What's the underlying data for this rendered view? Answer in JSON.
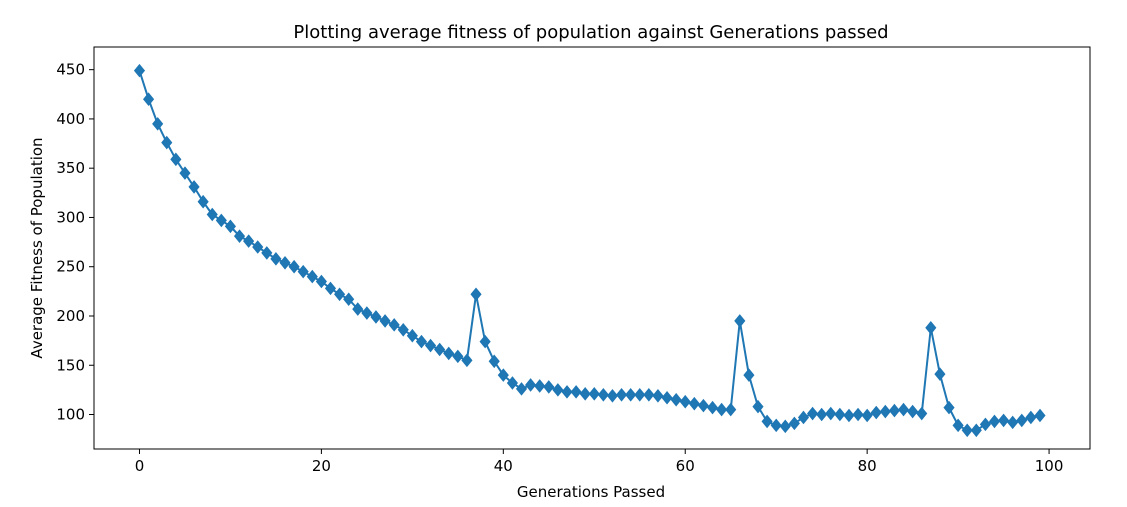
{
  "chart_data": {
    "type": "line",
    "title": "Plotting average fitness of population against Generations passed",
    "xlabel": "Generations Passed",
    "ylabel": "Average Fitness of Population",
    "xlim": [
      -5,
      104.5
    ],
    "ylim": [
      65,
      473
    ],
    "xticks": [
      0,
      20,
      40,
      60,
      80,
      100
    ],
    "yticks": [
      100,
      150,
      200,
      250,
      300,
      350,
      400,
      450
    ],
    "grid": false,
    "marker": "diamond",
    "color": "#1f77b4",
    "series": [
      {
        "x": [
          0,
          1,
          2,
          3,
          4,
          5,
          6,
          7,
          8,
          9,
          10,
          11,
          12,
          13,
          14,
          15,
          16,
          17,
          18,
          19,
          20,
          21,
          22,
          23,
          24,
          25,
          26,
          27,
          28,
          29,
          30,
          31,
          32,
          33,
          34,
          35,
          36,
          37,
          38,
          39,
          40,
          41,
          42,
          43,
          44,
          45,
          46,
          47,
          48,
          49,
          50,
          51,
          52,
          53,
          54,
          55,
          56,
          57,
          58,
          59,
          60,
          61,
          62,
          63,
          64,
          65,
          66,
          67,
          68,
          69,
          70,
          71,
          72,
          73,
          74,
          75,
          76,
          77,
          78,
          79,
          80,
          81,
          82,
          83,
          84,
          85,
          86,
          87,
          88,
          89,
          90,
          91,
          92,
          93,
          94,
          95,
          96,
          97,
          98,
          99
        ],
        "values": [
          449,
          420,
          395,
          376,
          359,
          345,
          331,
          316,
          303,
          297,
          291,
          281,
          276,
          270,
          264,
          258,
          254,
          250,
          245,
          240,
          235,
          228,
          222,
          217,
          207,
          203,
          199,
          195,
          191,
          186,
          180,
          174,
          170,
          166,
          162,
          159,
          155,
          222,
          174,
          154,
          140,
          132,
          126,
          130,
          129,
          128,
          125,
          123,
          123,
          121,
          121,
          120,
          119,
          120,
          120,
          120,
          120,
          119,
          117,
          115,
          113,
          111,
          109,
          107,
          105,
          105,
          195,
          140,
          108,
          93,
          89,
          88,
          91,
          97,
          101,
          100,
          101,
          100,
          99,
          100,
          99,
          102,
          103,
          104,
          105,
          103,
          101,
          188,
          141,
          107,
          89,
          84,
          84,
          90,
          93,
          94,
          92,
          94,
          97,
          99
        ]
      }
    ]
  }
}
